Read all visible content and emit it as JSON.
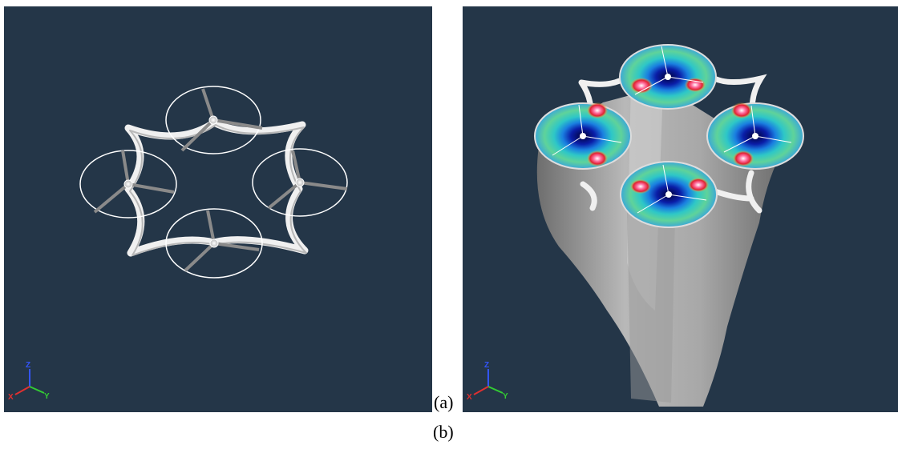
{
  "captions": {
    "a": "(a)",
    "b": "(b)"
  },
  "axes": {
    "x": "X",
    "y": "Y",
    "z": "Z"
  },
  "colors": {
    "background": "#243648",
    "frame": "#f2f2f2",
    "axis_x": "#e03030",
    "axis_y": "#33cc33",
    "axis_z": "#3355ff"
  },
  "scenes": {
    "a": {
      "rotors": 4,
      "view": "quadcopter frame with rotor discs"
    },
    "b": {
      "rotors": 4,
      "view": "quadcopter with colored rotor-disc pressure maps and grey wake volumes"
    }
  }
}
